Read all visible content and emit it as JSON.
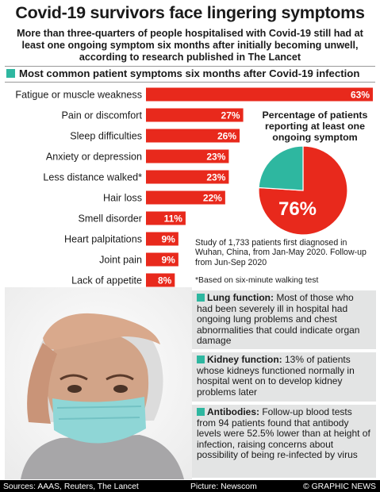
{
  "title": "Covid-19 survivors face lingering symptoms",
  "subtitle": "More than three-quarters of people hospitalised with Covid-19 still had at least one ongoing symptom six months after initially becoming unwell, according to research published in The Lancet",
  "chart_heading": "Most common patient symptoms six months after Covid-19 infection",
  "chart_data": [
    {
      "type": "bar",
      "orientation": "horizontal",
      "title": "Most common patient symptoms six months after Covid-19 infection",
      "categories": [
        "Fatigue or muscle weakness",
        "Pain or discomfort",
        "Sleep difficulties",
        "Anxiety or depression",
        "Less distance walked*",
        "Hair loss",
        "Smell disorder",
        "Heart palpitations",
        "Joint pain",
        "Lack of appetite"
      ],
      "values": [
        63,
        27,
        26,
        23,
        23,
        22,
        11,
        9,
        9,
        8
      ],
      "labels": [
        "63%",
        "27%",
        "26%",
        "23%",
        "23%",
        "22%",
        "11%",
        "9%",
        "9%",
        "8%"
      ],
      "xlim": [
        0,
        63
      ],
      "color": "#e8291c",
      "grid": false
    },
    {
      "type": "pie",
      "title": "Percentage of patients reporting at least one ongoing symptom",
      "slices": [
        {
          "value": 76,
          "label": "76%",
          "color": "#e8291c"
        },
        {
          "value": 24,
          "label": "",
          "color": "#2eb7a0"
        }
      ]
    }
  ],
  "pie_title": "Percentage of patients reporting at least one ongoing symptom",
  "study_note": "Study of 1,733 patients first diagnosed in Wuhan, China, from Jan-May 2020. Follow-up from Jun-Sep 2020",
  "footnote": "*Based on six-minute walking test",
  "panels": [
    {
      "heading": "Lung function:",
      "text": " Most of those who had been severely ill in hospital had ongoing lung problems and chest abnormalities that could indicate organ damage"
    },
    {
      "heading": "Kidney function:",
      "text": " 13% of patients whose kidneys functioned normally in hospital went on to develop kidney problems later"
    },
    {
      "heading": "Antibodies:",
      "text": " Follow-up blood tests from 94 patients found that antibody levels were 52.5% lower than at height of infection, raising concerns about possibility of being re-infected by virus"
    }
  ],
  "footer": {
    "sources": "Sources: AAAS, Reuters, The Lancet",
    "picture": "Picture: Newscom",
    "credit": "© GRAPHIC NEWS"
  },
  "colors": {
    "accent_red": "#e8291c",
    "teal": "#2eb7a0",
    "panel_bg": "#e3e4e4"
  },
  "icons": {
    "bullet": "teal-square-icon",
    "photo": "woman-in-face-mask-photo"
  }
}
